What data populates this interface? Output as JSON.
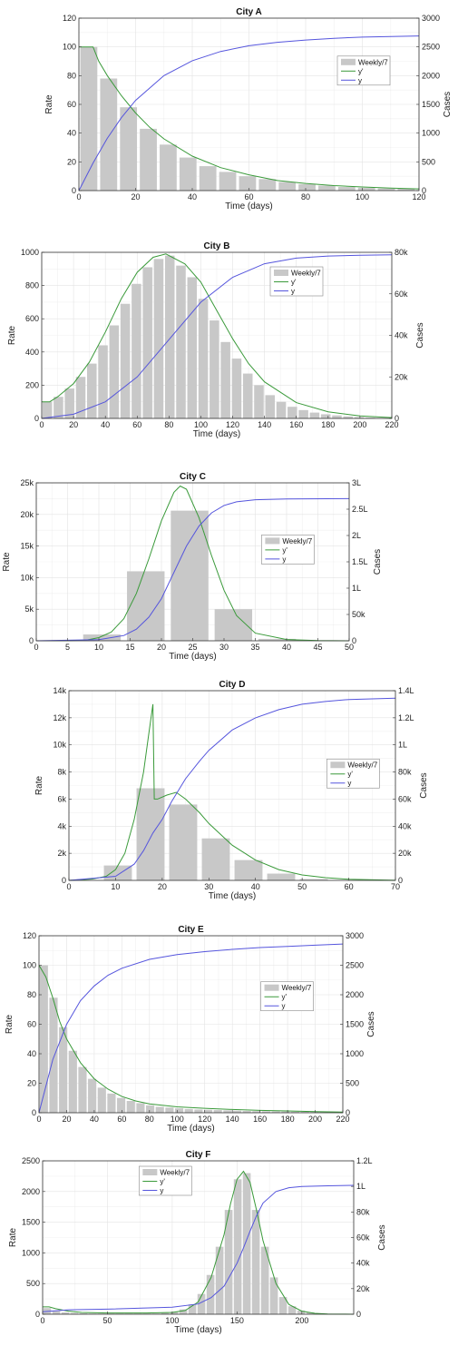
{
  "colors": {
    "bar": "#c8c8c8",
    "derivative": "#3a9a3a",
    "cumulative": "#5555dd",
    "grid": "#e3e3e3"
  },
  "chart_data": [
    {
      "type": "bar+line",
      "title": "City A",
      "xlabel": "Time (days)",
      "ylabel": "Rate",
      "y2label": "Cases",
      "xlim": [
        0,
        120
      ],
      "ylim": [
        0,
        120
      ],
      "y2lim": [
        0,
        3000
      ],
      "xticks": [
        0,
        20,
        40,
        60,
        80,
        100,
        120
      ],
      "xticklabels": [
        "0",
        "20",
        "40",
        "60",
        "80",
        "100",
        "120"
      ],
      "yticks": [
        0,
        20,
        40,
        60,
        80,
        100,
        120
      ],
      "yticklabels": [
        "0",
        "20",
        "40",
        "60",
        "80",
        "100",
        "120"
      ],
      "y2ticks": [
        0,
        500,
        1000,
        1500,
        2000,
        2500,
        3000
      ],
      "y2ticklabels": [
        "0",
        "500",
        "1000",
        "1500",
        "2000",
        "2500",
        "3000"
      ],
      "legend": {
        "position": "right",
        "entries": [
          "Weekly/7",
          "y'",
          "y"
        ]
      },
      "grid": true,
      "bars": {
        "width": 6,
        "x": [
          3.5,
          10.5,
          17.5,
          24.5,
          31.5,
          38.5,
          45.5,
          52.5,
          59.5,
          66.5,
          73.5,
          80.5,
          87.5,
          94.5,
          101.5,
          108.5,
          115.5
        ],
        "values": [
          100,
          78,
          58,
          43,
          32,
          23,
          17,
          13,
          10,
          8,
          6,
          4.5,
          3.5,
          2.5,
          2,
          1.5,
          1.2
        ]
      },
      "derivative": {
        "x": [
          0,
          5,
          7,
          10,
          15,
          20,
          25,
          30,
          40,
          50,
          60,
          70,
          80,
          90,
          100,
          110,
          120
        ],
        "y": [
          100,
          100,
          90,
          80,
          66,
          54,
          44,
          36,
          24,
          16,
          11,
          7,
          5,
          3.5,
          2.5,
          1.8,
          1.2
        ]
      },
      "cumulative": {
        "x": [
          0,
          5,
          10,
          15,
          20,
          30,
          40,
          50,
          60,
          70,
          80,
          90,
          100,
          110,
          120
        ],
        "y": [
          0,
          480,
          910,
          1270,
          1570,
          2000,
          2260,
          2420,
          2520,
          2580,
          2620,
          2650,
          2670,
          2680,
          2690
        ]
      }
    },
    {
      "type": "bar+line",
      "title": "City B",
      "xlabel": "Time (days)",
      "ylabel": "Rate",
      "y2label": "Cases",
      "xlim": [
        0,
        220
      ],
      "ylim": [
        0,
        1000
      ],
      "y2lim": [
        0,
        80000
      ],
      "xticks": [
        0,
        20,
        40,
        60,
        80,
        100,
        120,
        140,
        160,
        180,
        200,
        220
      ],
      "xticklabels": [
        "0",
        "20",
        "40",
        "60",
        "80",
        "100",
        "120",
        "140",
        "160",
        "180",
        "200",
        "220"
      ],
      "yticks": [
        0,
        200,
        400,
        600,
        800,
        1000
      ],
      "yticklabels": [
        "0",
        "200",
        "400",
        "600",
        "800",
        "1000"
      ],
      "y2ticks": [
        0,
        20000,
        40000,
        60000,
        80000
      ],
      "y2ticklabels": [
        "0",
        "20k",
        "40k",
        "60k",
        "80k"
      ],
      "legend": {
        "position": "top-right",
        "entries": [
          "Weekly/7",
          "y'",
          "y"
        ]
      },
      "grid": true,
      "bars": {
        "width": 6,
        "x": [
          3.5,
          10.5,
          17.5,
          24.5,
          31.5,
          38.5,
          45.5,
          52.5,
          59.5,
          66.5,
          73.5,
          80.5,
          87.5,
          94.5,
          101.5,
          108.5,
          115.5,
          122.5,
          129.5,
          136.5,
          143.5,
          150.5,
          157.5,
          164.5,
          171.5,
          178.5,
          185.5,
          192.5,
          199.5,
          206.5,
          213.5
        ],
        "values": [
          100,
          130,
          180,
          250,
          330,
          440,
          560,
          690,
          810,
          910,
          960,
          980,
          920,
          850,
          720,
          590,
          460,
          360,
          270,
          200,
          140,
          100,
          70,
          50,
          35,
          25,
          18,
          12,
          8,
          5,
          3
        ]
      },
      "derivative": {
        "x": [
          0,
          5,
          10,
          20,
          30,
          40,
          50,
          60,
          70,
          78,
          90,
          100,
          110,
          120,
          130,
          140,
          160,
          180,
          200,
          220
        ],
        "y": [
          100,
          100,
          130,
          210,
          340,
          520,
          720,
          880,
          970,
          990,
          930,
          820,
          650,
          480,
          330,
          220,
          95,
          40,
          15,
          5
        ]
      },
      "cumulative": {
        "x": [
          0,
          20,
          40,
          60,
          80,
          100,
          120,
          140,
          160,
          180,
          200,
          220
        ],
        "y": [
          0,
          2000,
          8000,
          20000,
          38000,
          56000,
          68000,
          74500,
          77200,
          78200,
          78600,
          78800
        ]
      }
    },
    {
      "type": "bar+line",
      "title": "City C",
      "xlabel": "Time (days)",
      "ylabel": "Rate",
      "y2label": "Cases",
      "xlim": [
        0,
        50
      ],
      "ylim": [
        0,
        25000
      ],
      "y2lim": [
        0,
        300000
      ],
      "xticks": [
        0,
        5,
        10,
        15,
        20,
        25,
        30,
        35,
        40,
        45,
        50
      ],
      "xticklabels": [
        "0",
        "5",
        "10",
        "15",
        "20",
        "25",
        "30",
        "35",
        "40",
        "45",
        "50"
      ],
      "yticks": [
        0,
        5000,
        10000,
        15000,
        20000,
        25000
      ],
      "yticklabels": [
        "0",
        "5k",
        "10k",
        "15k",
        "20k",
        "25k"
      ],
      "y2ticks": [
        0,
        50000,
        100000,
        150000,
        200000,
        250000,
        300000
      ],
      "y2ticklabels": [
        "0",
        "50k",
        "1L",
        "1.5L",
        "2L",
        "2.5L",
        "3L"
      ],
      "legend": {
        "position": "right",
        "entries": [
          "Weekly/7",
          "y'",
          "y"
        ]
      },
      "grid": true,
      "bars": {
        "width": 6,
        "x": [
          3.5,
          10.5,
          17.5,
          24.5,
          31.5,
          38.5,
          45.5
        ],
        "values": [
          0,
          1000,
          11000,
          20600,
          5000,
          300,
          0
        ]
      },
      "derivative": {
        "x": [
          0,
          5,
          8,
          10,
          12,
          14,
          16,
          18,
          20,
          22,
          23,
          24,
          26,
          28,
          30,
          32,
          35,
          40,
          45,
          50
        ],
        "y": [
          0,
          20,
          100,
          500,
          1400,
          3500,
          7500,
          13000,
          19000,
          23500,
          24500,
          24000,
          19500,
          13500,
          8000,
          4000,
          1200,
          200,
          30,
          0
        ]
      },
      "cumulative": {
        "x": [
          0,
          10,
          14,
          16,
          18,
          20,
          22,
          24,
          26,
          28,
          30,
          32,
          35,
          40,
          50
        ],
        "y": [
          0,
          2000,
          10000,
          22000,
          45000,
          80000,
          130000,
          180000,
          218000,
          243000,
          257000,
          264000,
          268000,
          269500,
          270000
        ]
      }
    },
    {
      "type": "bar+line",
      "title": "City D",
      "xlabel": "Time (days)",
      "ylabel": "Rate",
      "y2label": "Cases",
      "xlim": [
        0,
        70
      ],
      "ylim": [
        0,
        14000
      ],
      "y2lim": [
        0,
        140000
      ],
      "xticks": [
        0,
        10,
        20,
        30,
        40,
        50,
        60,
        70
      ],
      "xticklabels": [
        "0",
        "10",
        "20",
        "30",
        "40",
        "50",
        "60",
        "70"
      ],
      "yticks": [
        0,
        2000,
        4000,
        6000,
        8000,
        10000,
        12000,
        14000
      ],
      "yticklabels": [
        "0",
        "2k",
        "4k",
        "6k",
        "8k",
        "10k",
        "12k",
        "14k"
      ],
      "y2ticks": [
        0,
        20000,
        40000,
        60000,
        80000,
        100000,
        120000,
        140000
      ],
      "y2ticklabels": [
        "0",
        "20k",
        "40k",
        "60k",
        "80k",
        "1L",
        "1.2L",
        "1.4L"
      ],
      "legend": {
        "position": "right",
        "entries": [
          "Weekly/7",
          "y'",
          "y"
        ]
      },
      "grid": true,
      "bars": {
        "width": 6,
        "x": [
          3.5,
          10.5,
          17.5,
          24.5,
          31.5,
          38.5,
          45.5,
          52.5
        ],
        "values": [
          0,
          1100,
          6800,
          5600,
          3100,
          1500,
          500,
          100
        ]
      },
      "derivative": {
        "x": [
          0,
          5,
          8,
          10,
          12,
          14,
          16,
          17,
          18,
          18.3,
          19,
          21,
          23,
          25,
          28,
          30,
          35,
          40,
          45,
          50,
          55,
          60,
          70
        ],
        "y": [
          0,
          100,
          300,
          800,
          2000,
          4500,
          8000,
          10500,
          13000,
          6000,
          6000,
          6300,
          6500,
          6000,
          5000,
          4200,
          2600,
          1500,
          800,
          400,
          200,
          80,
          10
        ]
      },
      "cumulative": {
        "x": [
          0,
          10,
          14,
          16,
          18,
          20,
          22,
          25,
          28,
          30,
          35,
          40,
          45,
          50,
          55,
          60,
          70
        ],
        "y": [
          0,
          3000,
          12000,
          22000,
          35000,
          45000,
          58000,
          75000,
          88000,
          96000,
          111000,
          120000,
          126000,
          130000,
          132000,
          133500,
          134500
        ]
      }
    },
    {
      "type": "bar+line",
      "title": "City E",
      "xlabel": "Time (days)",
      "ylabel": "Rate",
      "y2label": "Cases",
      "xlim": [
        0,
        220
      ],
      "ylim": [
        0,
        120
      ],
      "y2lim": [
        0,
        3000
      ],
      "xticks": [
        0,
        20,
        40,
        60,
        80,
        100,
        120,
        140,
        160,
        180,
        200,
        220
      ],
      "xticklabels": [
        "0",
        "20",
        "40",
        "60",
        "80",
        "100",
        "120",
        "140",
        "160",
        "180",
        "200",
        "220"
      ],
      "yticks": [
        0,
        20,
        40,
        60,
        80,
        100,
        120
      ],
      "yticklabels": [
        "0",
        "20",
        "40",
        "60",
        "80",
        "100",
        "120"
      ],
      "y2ticks": [
        0,
        500,
        1000,
        1500,
        2000,
        2500,
        3000
      ],
      "y2ticklabels": [
        "0",
        "500",
        "1000",
        "1500",
        "2000",
        "2500",
        "3000"
      ],
      "legend": {
        "position": "right",
        "entries": [
          "Weekly/7",
          "y'",
          "y"
        ]
      },
      "grid": true,
      "bars": {
        "width": 6,
        "x": [
          3.5,
          10.5,
          17.5,
          24.5,
          31.5,
          38.5,
          45.5,
          52.5,
          59.5,
          66.5,
          73.5,
          80.5,
          87.5,
          94.5,
          101.5,
          108.5,
          115.5,
          122.5,
          129.5,
          136.5,
          143.5,
          150.5,
          157.5,
          164.5,
          171.5,
          178.5,
          185.5,
          192.5,
          199.5,
          206.5,
          213.5
        ],
        "values": [
          100,
          78,
          58,
          42,
          31,
          23,
          17,
          13,
          10,
          8,
          6.5,
          5,
          4,
          3.5,
          3,
          2.5,
          2.2,
          2,
          1.8,
          1.6,
          1.4,
          1.2,
          1.1,
          1,
          0.9,
          0.8,
          0.7,
          0.6,
          0.5,
          0.5,
          0.4
        ]
      },
      "derivative": {
        "x": [
          0,
          5,
          10,
          15,
          20,
          30,
          40,
          50,
          60,
          70,
          80,
          100,
          120,
          140,
          160,
          180,
          200,
          220
        ],
        "y": [
          100,
          92,
          78,
          62,
          50,
          34,
          23,
          16,
          11,
          8,
          6,
          4,
          3,
          2.2,
          1.6,
          1.2,
          0.8,
          0.5
        ]
      },
      "cumulative": {
        "x": [
          0,
          10,
          20,
          30,
          40,
          50,
          60,
          80,
          100,
          120,
          140,
          160,
          180,
          200,
          220
        ],
        "y": [
          0,
          900,
          1500,
          1900,
          2150,
          2330,
          2450,
          2600,
          2680,
          2730,
          2770,
          2800,
          2820,
          2840,
          2860
        ]
      }
    },
    {
      "type": "bar+line",
      "title": "City F",
      "xlabel": "Time (days)",
      "ylabel": "Rate",
      "y2label": "Cases",
      "xlim": [
        0,
        240
      ],
      "ylim": [
        0,
        2500
      ],
      "y2lim": [
        0,
        120000
      ],
      "xticks": [
        0,
        50,
        100,
        150,
        200
      ],
      "xticklabels": [
        "0",
        "50",
        "100",
        "150",
        "200"
      ],
      "yticks": [
        0,
        500,
        1000,
        1500,
        2000,
        2500
      ],
      "yticklabels": [
        "0",
        "500",
        "1000",
        "1500",
        "2000",
        "2500"
      ],
      "y2ticks": [
        0,
        20000,
        40000,
        60000,
        80000,
        100000,
        120000
      ],
      "y2ticklabels": [
        "0",
        "20k",
        "40k",
        "60k",
        "80k",
        "1L",
        "1.2L"
      ],
      "legend": {
        "position": "top-left",
        "entries": [
          "Weekly/7",
          "y'",
          "y"
        ]
      },
      "grid": true,
      "bars": {
        "width": 6,
        "x": [
          3.5,
          10.5,
          17.5,
          24.5,
          31.5,
          38.5,
          45.5,
          52.5,
          59.5,
          66.5,
          73.5,
          80.5,
          87.5,
          94.5,
          101.5,
          108.5,
          115.5,
          122.5,
          129.5,
          136.5,
          143.5,
          150.5,
          157.5,
          164.5,
          171.5,
          178.5,
          185.5,
          192.5,
          199.5,
          206.5,
          213.5,
          220.5,
          227.5,
          234.5
        ],
        "values": [
          100,
          60,
          30,
          20,
          15,
          10,
          10,
          10,
          10,
          10,
          10,
          10,
          10,
          20,
          40,
          80,
          160,
          330,
          640,
          1100,
          1700,
          2200,
          2300,
          1700,
          1100,
          600,
          280,
          130,
          60,
          30,
          15,
          8,
          4,
          2
        ]
      },
      "derivative": {
        "x": [
          0,
          5,
          10,
          20,
          30,
          50,
          80,
          100,
          110,
          120,
          130,
          140,
          145,
          150,
          155,
          160,
          165,
          170,
          180,
          190,
          200,
          210,
          220,
          240
        ],
        "y": [
          120,
          120,
          90,
          50,
          30,
          20,
          20,
          30,
          60,
          200,
          600,
          1300,
          1800,
          2200,
          2330,
          2150,
          1700,
          1200,
          500,
          160,
          50,
          15,
          5,
          0
        ]
      },
      "cumulative": {
        "x": [
          0,
          20,
          50,
          100,
          120,
          130,
          140,
          150,
          155,
          160,
          165,
          170,
          180,
          190,
          200,
          220,
          240
        ],
        "y": [
          2000,
          3500,
          4000,
          5500,
          8000,
          13000,
          22000,
          40000,
          52000,
          65000,
          77000,
          87000,
          96000,
          99000,
          100000,
          100500,
          100800
        ]
      }
    }
  ]
}
